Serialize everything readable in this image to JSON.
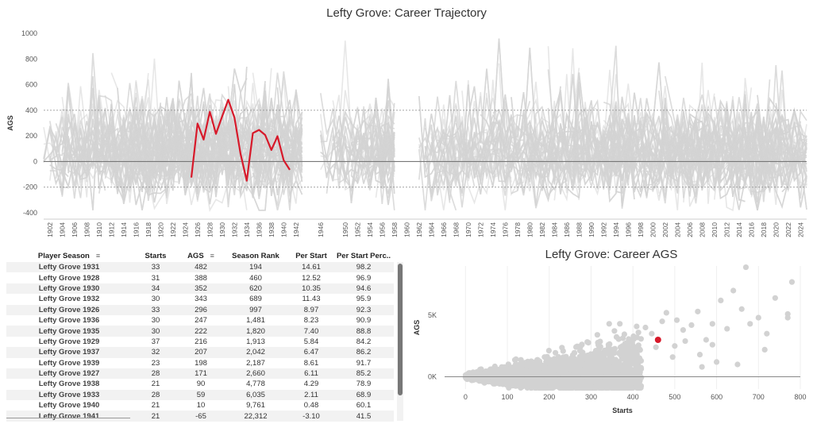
{
  "colors": {
    "highlight": "#d7192a",
    "background_lines": "#d4d4d4",
    "zero_line": "#777777",
    "ref_line": "#888888"
  },
  "trajectory": {
    "title": "Lefty Grove: Career Trajectory",
    "ylabel": "AGS"
  },
  "table": {
    "headers": [
      "Player Season",
      "Starts",
      "AGS",
      "Season Rank",
      "Per Start",
      "Per Start Perc.."
    ],
    "rows": [
      [
        "Lefty Grove 1931",
        "33",
        "482",
        "194",
        "14.61",
        "98.2"
      ],
      [
        "Lefty Grove 1928",
        "31",
        "388",
        "460",
        "12.52",
        "96.9"
      ],
      [
        "Lefty Grove 1930",
        "34",
        "352",
        "620",
        "10.35",
        "94.6"
      ],
      [
        "Lefty Grove 1932",
        "30",
        "343",
        "689",
        "11.43",
        "95.9"
      ],
      [
        "Lefty Grove 1926",
        "33",
        "296",
        "997",
        "8.97",
        "92.3"
      ],
      [
        "Lefty Grove 1936",
        "30",
        "247",
        "1,481",
        "8.23",
        "90.9"
      ],
      [
        "Lefty Grove 1935",
        "30",
        "222",
        "1,820",
        "7.40",
        "88.8"
      ],
      [
        "Lefty Grove 1929",
        "37",
        "216",
        "1,913",
        "5.84",
        "84.2"
      ],
      [
        "Lefty Grove 1937",
        "32",
        "207",
        "2,042",
        "6.47",
        "86.2"
      ],
      [
        "Lefty Grove 1939",
        "23",
        "198",
        "2,187",
        "8.61",
        "91.7"
      ],
      [
        "Lefty Grove 1927",
        "28",
        "171",
        "2,660",
        "6.11",
        "85.2"
      ],
      [
        "Lefty Grove 1938",
        "21",
        "90",
        "4,778",
        "4.29",
        "78.9"
      ],
      [
        "Lefty Grove 1933",
        "28",
        "59",
        "6,035",
        "2.11",
        "68.9"
      ],
      [
        "Lefty Grove 1940",
        "21",
        "10",
        "9,761",
        "0.48",
        "60.1"
      ],
      [
        "Lefty Grove 1941",
        "21",
        "-65",
        "22,312",
        "-3.10",
        "41.5"
      ]
    ]
  },
  "scatter": {
    "title": "Lefty Grove: Career AGS",
    "xlabel": "Starts",
    "ylabel": "AGS"
  },
  "chart_data": [
    {
      "type": "line",
      "title": "Lefty Grove: Career Trajectory",
      "xlabel": "",
      "ylabel": "AGS",
      "ylim": [
        -400,
        1000
      ],
      "xlim": [
        1901,
        2025
      ],
      "y_ticks": [
        -400,
        -200,
        0,
        200,
        400,
        600,
        800,
        1000
      ],
      "x_ticks": [
        1902,
        1904,
        1906,
        1908,
        1910,
        1912,
        1914,
        1916,
        1918,
        1920,
        1922,
        1924,
        1926,
        1928,
        1930,
        1932,
        1934,
        1936,
        1938,
        1940,
        1942,
        1946,
        1950,
        1952,
        1954,
        1956,
        1958,
        1960,
        1962,
        1964,
        1966,
        1968,
        1970,
        1972,
        1974,
        1976,
        1978,
        1980,
        1982,
        1984,
        1986,
        1988,
        1990,
        1992,
        1994,
        1996,
        1998,
        2000,
        2002,
        2004,
        2006,
        2008,
        2010,
        2012,
        2014,
        2016,
        2018,
        2020,
        2022,
        2024
      ],
      "reference_lines": [
        400,
        -200
      ],
      "grid": false,
      "series": [
        {
          "x": [
            1925,
            1926,
            1927,
            1928,
            1929,
            1930,
            1931,
            1932,
            1933,
            1934,
            1935,
            1936,
            1937,
            1938,
            1939,
            1940,
            1941
          ],
          "y": [
            -125,
            296,
            171,
            388,
            216,
            352,
            482,
            343,
            59,
            -150,
            222,
            247,
            207,
            90,
            198,
            10,
            -65
          ]
        }
      ]
    },
    {
      "type": "scatter",
      "title": "Lefty Grove: Career AGS",
      "xlabel": "Starts",
      "ylabel": "AGS",
      "xlim": [
        -50,
        800
      ],
      "ylim": [
        -1000,
        9000
      ],
      "x_ticks": [
        0,
        100,
        200,
        300,
        400,
        500,
        600,
        700,
        800
      ],
      "y_ticks": [
        0,
        5000
      ],
      "y_tick_labels": [
        "0K",
        "5K"
      ],
      "highlight_point": {
        "x": 460,
        "y": 3000
      },
      "outliers": [
        {
          "x": 410,
          "y": 3200
        },
        {
          "x": 430,
          "y": 4000
        },
        {
          "x": 445,
          "y": 3500
        },
        {
          "x": 470,
          "y": 4500
        },
        {
          "x": 480,
          "y": 5200
        },
        {
          "x": 500,
          "y": 2500
        },
        {
          "x": 520,
          "y": 3800
        },
        {
          "x": 540,
          "y": 4200
        },
        {
          "x": 560,
          "y": 1800
        },
        {
          "x": 575,
          "y": 3000
        },
        {
          "x": 590,
          "y": 2600
        },
        {
          "x": 610,
          "y": 6200
        },
        {
          "x": 640,
          "y": 7000
        },
        {
          "x": 660,
          "y": 5500
        },
        {
          "x": 670,
          "y": 8900
        },
        {
          "x": 700,
          "y": 4800
        },
        {
          "x": 715,
          "y": 2200
        },
        {
          "x": 720,
          "y": 3500
        },
        {
          "x": 740,
          "y": 6400
        },
        {
          "x": 770,
          "y": 5100
        },
        {
          "x": 780,
          "y": 7700
        },
        {
          "x": 650,
          "y": 1000
        },
        {
          "x": 600,
          "y": 1200
        },
        {
          "x": 555,
          "y": 5300
        },
        {
          "x": 495,
          "y": 1600
        },
        {
          "x": 525,
          "y": 2900
        },
        {
          "x": 625,
          "y": 3900
        },
        {
          "x": 455,
          "y": 2400
        },
        {
          "x": 505,
          "y": 4600
        },
        {
          "x": 680,
          "y": 4300
        },
        {
          "x": 565,
          "y": 800
        },
        {
          "x": 590,
          "y": 4300
        },
        {
          "x": 770,
          "y": 4800
        }
      ]
    }
  ]
}
